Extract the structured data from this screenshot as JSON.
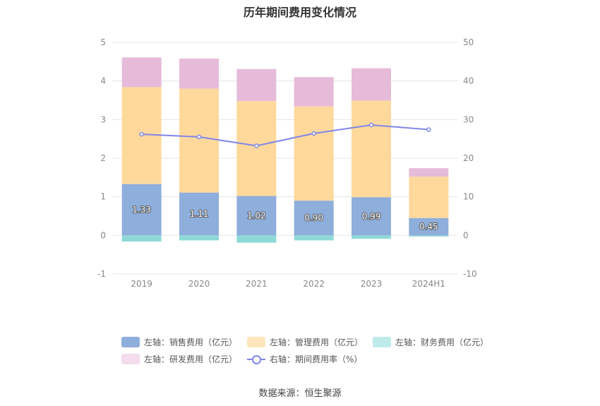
{
  "chart_data": {
    "type": "bar",
    "title": "历年期间费用变化情况",
    "categories": [
      "2019",
      "2020",
      "2021",
      "2022",
      "2023",
      "2024H1"
    ],
    "series": [
      {
        "name": "左轴：销售费用（亿元）",
        "axis": "left",
        "color": "#8eaedc",
        "values": [
          1.33,
          1.11,
          1.02,
          0.9,
          0.99,
          0.45
        ],
        "labels": [
          "1.33",
          "1.11",
          "1.02",
          "0.90",
          "0.99",
          "0.45"
        ]
      },
      {
        "name": "左轴：管理费用（亿元）",
        "axis": "left",
        "color": "#ffd99b",
        "values": [
          2.51,
          2.69,
          2.46,
          2.44,
          2.5,
          1.07
        ]
      },
      {
        "name": "左轴：财务费用（亿元）",
        "axis": "left",
        "color": "#8fd8d8",
        "values": [
          -0.16,
          -0.13,
          -0.19,
          -0.13,
          -0.09,
          -0.03
        ]
      },
      {
        "name": "左轴：研发费用（亿元）",
        "axis": "left",
        "color": "#e6bbd9",
        "values": [
          0.77,
          0.78,
          0.83,
          0.76,
          0.84,
          0.22
        ]
      },
      {
        "name": "右轴：期间费用率（%）",
        "axis": "right",
        "type": "line",
        "color": "#7f86e8",
        "values": [
          26.2,
          25.5,
          23.2,
          26.4,
          28.6,
          27.4
        ]
      }
    ],
    "left_axis": {
      "min": -1,
      "max": 5,
      "ticks": [
        "-1",
        "0",
        "1",
        "2",
        "3",
        "4",
        "5"
      ]
    },
    "right_axis": {
      "min": -10,
      "max": 50,
      "ticks": [
        "-10",
        "0",
        "10",
        "20",
        "30",
        "40",
        "50"
      ]
    },
    "grid": true,
    "legend_position": "bottom"
  },
  "legend": {
    "items": [
      {
        "label": "左轴：销售费用（亿元）",
        "color": "#8eaedc"
      },
      {
        "label": "左轴：管理费用（亿元）",
        "color": "#ffe6bd"
      },
      {
        "label": "左轴：财务费用（亿元）",
        "color": "#bfeaea"
      },
      {
        "label": "左轴：研发费用（亿元）",
        "color": "#f3dcec"
      },
      {
        "label": "右轴：期间费用率（%）",
        "color": "#7f86e8"
      }
    ]
  },
  "source": "数据来源：恒生聚源"
}
